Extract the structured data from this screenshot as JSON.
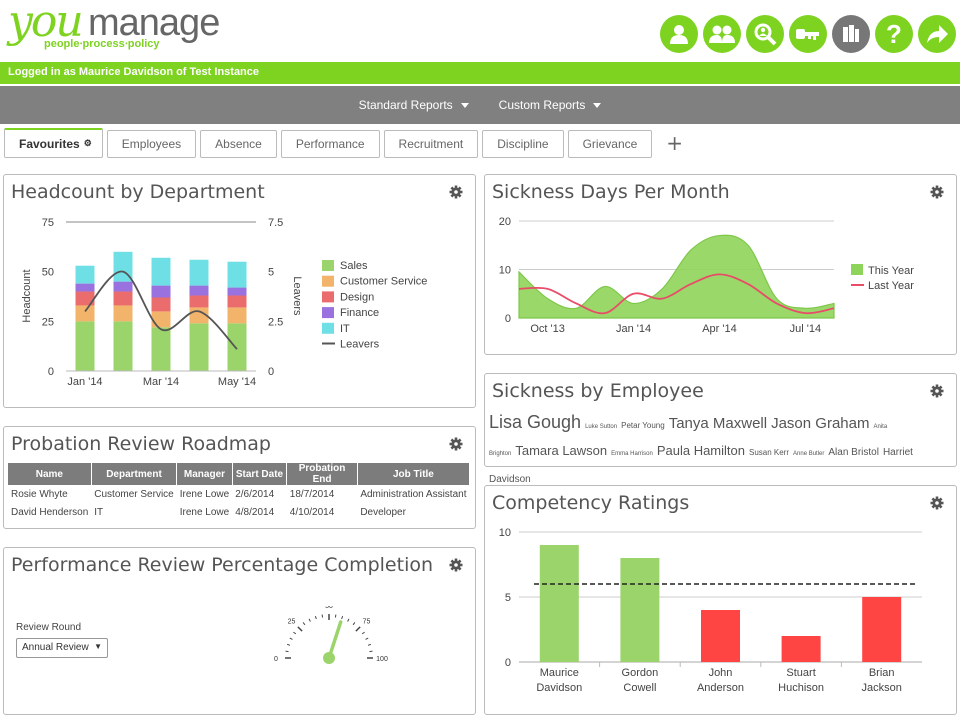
{
  "brand": {
    "you": "you",
    "manage": "manage",
    "tagline": "people∙process∙policy",
    "accent": "#7ed321"
  },
  "toolbar_icons": [
    "user-icon",
    "users-icon",
    "search-user-icon",
    "key-icon",
    "reports-icon",
    "help-icon",
    "logout-icon"
  ],
  "login_text": "Logged in as Maurice Davidson of Test Instance",
  "menu": [
    {
      "label": "Standard Reports"
    },
    {
      "label": "Custom Reports"
    }
  ],
  "tabs": [
    {
      "label": "Favourites",
      "active": true
    },
    {
      "label": "Employees"
    },
    {
      "label": "Absence"
    },
    {
      "label": "Performance"
    },
    {
      "label": "Recruitment"
    },
    {
      "label": "Discipline"
    },
    {
      "label": "Grievance"
    }
  ],
  "add_tab": "+",
  "panels": {
    "headcount": {
      "title": "Headcount by Department"
    },
    "probation": {
      "title": "Probation Review Roadmap"
    },
    "performance": {
      "title": "Performance Review Percentage Completion"
    },
    "sickness_days": {
      "title": "Sickness Days Per Month"
    },
    "sickness_employee": {
      "title": "Sickness by Employee"
    },
    "competency": {
      "title": "Competency Ratings"
    }
  },
  "probation_table": {
    "columns": [
      "Name",
      "Department",
      "Manager",
      "Start Date",
      "Probation End",
      "Job Title"
    ],
    "rows": [
      [
        "Rosie Whyte",
        "Customer Service",
        "Irene Lowe",
        "2/6/2014",
        "18/7/2014",
        "Administration Assistant"
      ],
      [
        "David Henderson",
        "IT",
        "Irene Lowe",
        "4/8/2014",
        "4/10/2014",
        "Developer"
      ]
    ]
  },
  "review_round": {
    "label": "Review Round",
    "value": "Annual Review",
    "dropdown_icon": "▼"
  },
  "gauge": {
    "ticks": [
      "0",
      "25",
      "50",
      "75",
      "100"
    ],
    "value": 60
  },
  "sickness_cloud": [
    {
      "name": "Lisa Gough",
      "size": "xl"
    },
    {
      "name": "Luke Sutton",
      "size": "xs"
    },
    {
      "name": "Petar Young",
      "size": "s"
    },
    {
      "name": "Tanya Maxwell",
      "size": "l"
    },
    {
      "name": "Jason Graham",
      "size": "l"
    },
    {
      "name": "Anita Brighton",
      "size": "xs"
    },
    {
      "name": "Tamara Lawson",
      "size": "m"
    },
    {
      "name": "Emma Harrison",
      "size": "xs"
    },
    {
      "name": "Paula Hamilton",
      "size": "ml"
    },
    {
      "name": "Susan Kerr",
      "size": "s"
    },
    {
      "name": "Anne Butler",
      "size": "xs"
    },
    {
      "name": "Alan Bristol",
      "size": "s2"
    },
    {
      "name": "Harriet Davidson",
      "size": "s2"
    }
  ],
  "chart_data": [
    {
      "id": "headcount",
      "type": "bar",
      "title": "Headcount by Department",
      "ylabel": "Headcount",
      "y2label": "Leavers",
      "ylim": [
        0,
        75
      ],
      "y2lim": [
        0,
        7.5
      ],
      "yticks": [
        "0",
        "25",
        "50",
        "75"
      ],
      "y2ticks": [
        "0",
        "2.5",
        "5",
        "7.5"
      ],
      "xticklabels": [
        "Jan '14",
        "Mar '14",
        "May '14"
      ],
      "categories": [
        "Jan '14",
        "Feb '14",
        "Mar '14",
        "Apr '14",
        "May '14"
      ],
      "stacked": true,
      "series": [
        {
          "name": "Sales",
          "color": "#9bd46a",
          "values": [
            25,
            25,
            22,
            24,
            24
          ]
        },
        {
          "name": "Customer Service",
          "color": "#f2b36a",
          "values": [
            8,
            8,
            8,
            8,
            8
          ]
        },
        {
          "name": "Design",
          "color": "#eb6c6c",
          "values": [
            7,
            7,
            7,
            6,
            6
          ]
        },
        {
          "name": "Finance",
          "color": "#9a72e0",
          "values": [
            4,
            5,
            6,
            5,
            4
          ]
        },
        {
          "name": "IT",
          "color": "#6fdfe6",
          "values": [
            9,
            15,
            14,
            13,
            13
          ]
        }
      ],
      "line": {
        "name": "Leavers",
        "color": "#555555",
        "values": [
          3,
          5,
          2.1,
          3,
          1.1
        ]
      }
    },
    {
      "id": "sickness_days",
      "type": "area",
      "title": "Sickness Days Per Month",
      "ylim": [
        0,
        20
      ],
      "yticks": [
        "0",
        "10",
        "20"
      ],
      "xticklabels": [
        "Oct '13",
        "Jan '14",
        "Apr '14",
        "Jul '14"
      ],
      "categories": [
        "Sep '13",
        "Oct '13",
        "Nov '13",
        "Dec '13",
        "Jan '14",
        "Feb '14",
        "Mar '14",
        "Apr '14",
        "May '14",
        "Jun '14",
        "Jul '14",
        "Aug '14"
      ],
      "series": [
        {
          "name": "This Year",
          "color": "#8fd45a",
          "kind": "area",
          "values": [
            9.5,
            4,
            2,
            6.5,
            3,
            6,
            14,
            17,
            15,
            4,
            2,
            3
          ]
        },
        {
          "name": "Last Year",
          "color": "#e84c68",
          "kind": "line",
          "values": [
            6,
            6,
            3,
            1,
            5,
            4,
            7,
            9,
            7,
            3,
            1,
            2
          ]
        }
      ]
    },
    {
      "id": "competency",
      "type": "bar",
      "title": "Competency Ratings",
      "ylim": [
        0,
        10
      ],
      "yticks": [
        "0",
        "5",
        "10"
      ],
      "threshold": 6,
      "categories": [
        [
          "Maurice",
          "Davidson"
        ],
        [
          "Gordon",
          "Cowell"
        ],
        [
          "John",
          "Anderson"
        ],
        [
          "Stuart",
          "Huchison"
        ],
        [
          "Brian",
          "Jackson"
        ]
      ],
      "values": [
        9,
        8,
        4,
        2,
        5
      ],
      "colors": [
        "#9bd46a",
        "#9bd46a",
        "#ff4444",
        "#ff4444",
        "#ff4444"
      ]
    }
  ]
}
